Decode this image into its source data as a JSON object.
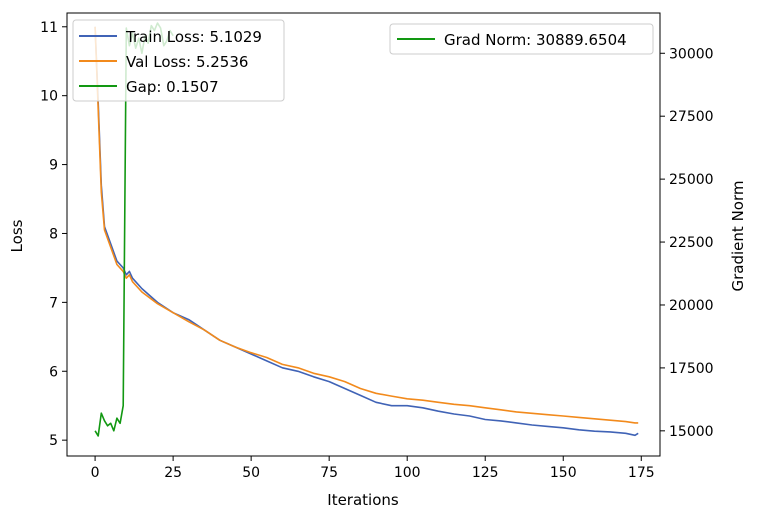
{
  "chart_data": {
    "type": "line",
    "xlabel": "Iterations",
    "ylabel_left": "Loss",
    "ylabel_right": "Gradient Norm",
    "xlim": [
      -9,
      181
    ],
    "ylim_left": [
      4.77,
      11.2
    ],
    "ylim_right": [
      14000,
      31600
    ],
    "x_ticks": [
      0,
      25,
      50,
      75,
      100,
      125,
      150,
      175
    ],
    "y_left_ticks": [
      5,
      6,
      7,
      8,
      9,
      10,
      11
    ],
    "y_right_ticks": [
      15000,
      17500,
      20000,
      22500,
      25000,
      27500,
      30000
    ],
    "grid": false,
    "legend_left_placement": "upper-left",
    "legend_right_placement": "upper-right",
    "legend_left": [
      "Train Loss: 5.1029",
      "Val Loss: 5.2536",
      "Gap: 0.1507"
    ],
    "legend_right": [
      "Grad Norm: 30889.6504"
    ],
    "series": [
      {
        "name": "Train Loss: 5.1029",
        "axis": "left",
        "color": "#4063b6",
        "x": [
          0,
          1,
          2,
          3,
          5,
          7,
          9,
          10,
          11,
          12,
          15,
          20,
          25,
          30,
          35,
          40,
          45,
          50,
          55,
          60,
          65,
          70,
          75,
          80,
          85,
          90,
          95,
          100,
          105,
          110,
          115,
          120,
          125,
          130,
          135,
          140,
          145,
          150,
          155,
          160,
          165,
          170,
          173,
          174
        ],
        "values": [
          11.0,
          9.9,
          8.7,
          8.1,
          7.85,
          7.6,
          7.5,
          7.4,
          7.45,
          7.35,
          7.2,
          7.0,
          6.85,
          6.75,
          6.6,
          6.45,
          6.35,
          6.25,
          6.15,
          6.05,
          6.0,
          5.92,
          5.85,
          5.75,
          5.65,
          5.55,
          5.5,
          5.5,
          5.47,
          5.42,
          5.38,
          5.35,
          5.3,
          5.28,
          5.25,
          5.22,
          5.2,
          5.18,
          5.15,
          5.13,
          5.12,
          5.1,
          5.07,
          5.1
        ]
      },
      {
        "name": "Val Loss: 5.2536",
        "axis": "left",
        "color": "#f28a1c",
        "x": [
          0,
          1,
          2,
          3,
          5,
          7,
          9,
          10,
          11,
          12,
          15,
          20,
          25,
          30,
          35,
          40,
          45,
          50,
          55,
          60,
          65,
          70,
          75,
          80,
          85,
          90,
          95,
          100,
          105,
          110,
          115,
          120,
          125,
          130,
          135,
          140,
          145,
          150,
          155,
          160,
          165,
          170,
          173,
          174
        ],
        "values": [
          11.0,
          9.8,
          8.6,
          8.05,
          7.8,
          7.55,
          7.45,
          7.35,
          7.4,
          7.3,
          7.15,
          6.98,
          6.85,
          6.72,
          6.6,
          6.45,
          6.35,
          6.27,
          6.2,
          6.1,
          6.05,
          5.97,
          5.92,
          5.85,
          5.75,
          5.68,
          5.64,
          5.6,
          5.58,
          5.55,
          5.52,
          5.5,
          5.47,
          5.44,
          5.41,
          5.39,
          5.37,
          5.35,
          5.33,
          5.31,
          5.29,
          5.27,
          5.25,
          5.25
        ]
      },
      {
        "name": "Gap: 0.1507",
        "axis": "left",
        "color": "#129812",
        "x": [],
        "values": []
      },
      {
        "name": "Grad Norm: 30889.6504",
        "axis": "right",
        "color": "#129812",
        "x": [
          0,
          1,
          2,
          3,
          4,
          5,
          6,
          7,
          8,
          9,
          10,
          11,
          12,
          13,
          14,
          15,
          16,
          17,
          18,
          19,
          20,
          21,
          22,
          23,
          24,
          25
        ],
        "values": [
          15000,
          14800,
          15700,
          15400,
          15200,
          15300,
          15000,
          15500,
          15300,
          16000,
          31000,
          30300,
          30800,
          30200,
          30600,
          30000,
          30700,
          30400,
          31100,
          30900,
          31200,
          31000,
          30300,
          30500,
          30900,
          30700
        ]
      }
    ]
  }
}
